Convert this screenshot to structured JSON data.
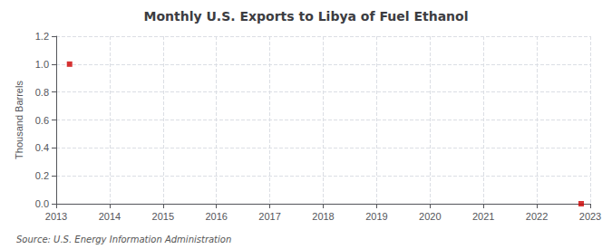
{
  "chart_data": {
    "type": "scatter",
    "title": "Monthly U.S. Exports to Libya of Fuel Ethanol",
    "ylabel": "Thousand Barrels",
    "source": "Source: U.S. Energy Information Administration",
    "x": [
      2013.25,
      2022.83
    ],
    "values": [
      1.0,
      0.0
    ],
    "color": "#cc0000",
    "marker": "square",
    "xlim": [
      2013,
      2023
    ],
    "ylim": [
      0.0,
      1.2
    ],
    "xticks": [
      2013,
      2014,
      2015,
      2016,
      2017,
      2018,
      2019,
      2020,
      2021,
      2022,
      2023
    ],
    "yticks": [
      {
        "value": 0.0,
        "label": "0.0"
      },
      0.2,
      0.4,
      0.6,
      0.8,
      {
        "value": 1.0,
        "label": "1.0"
      },
      1.2
    ],
    "grid": true
  }
}
